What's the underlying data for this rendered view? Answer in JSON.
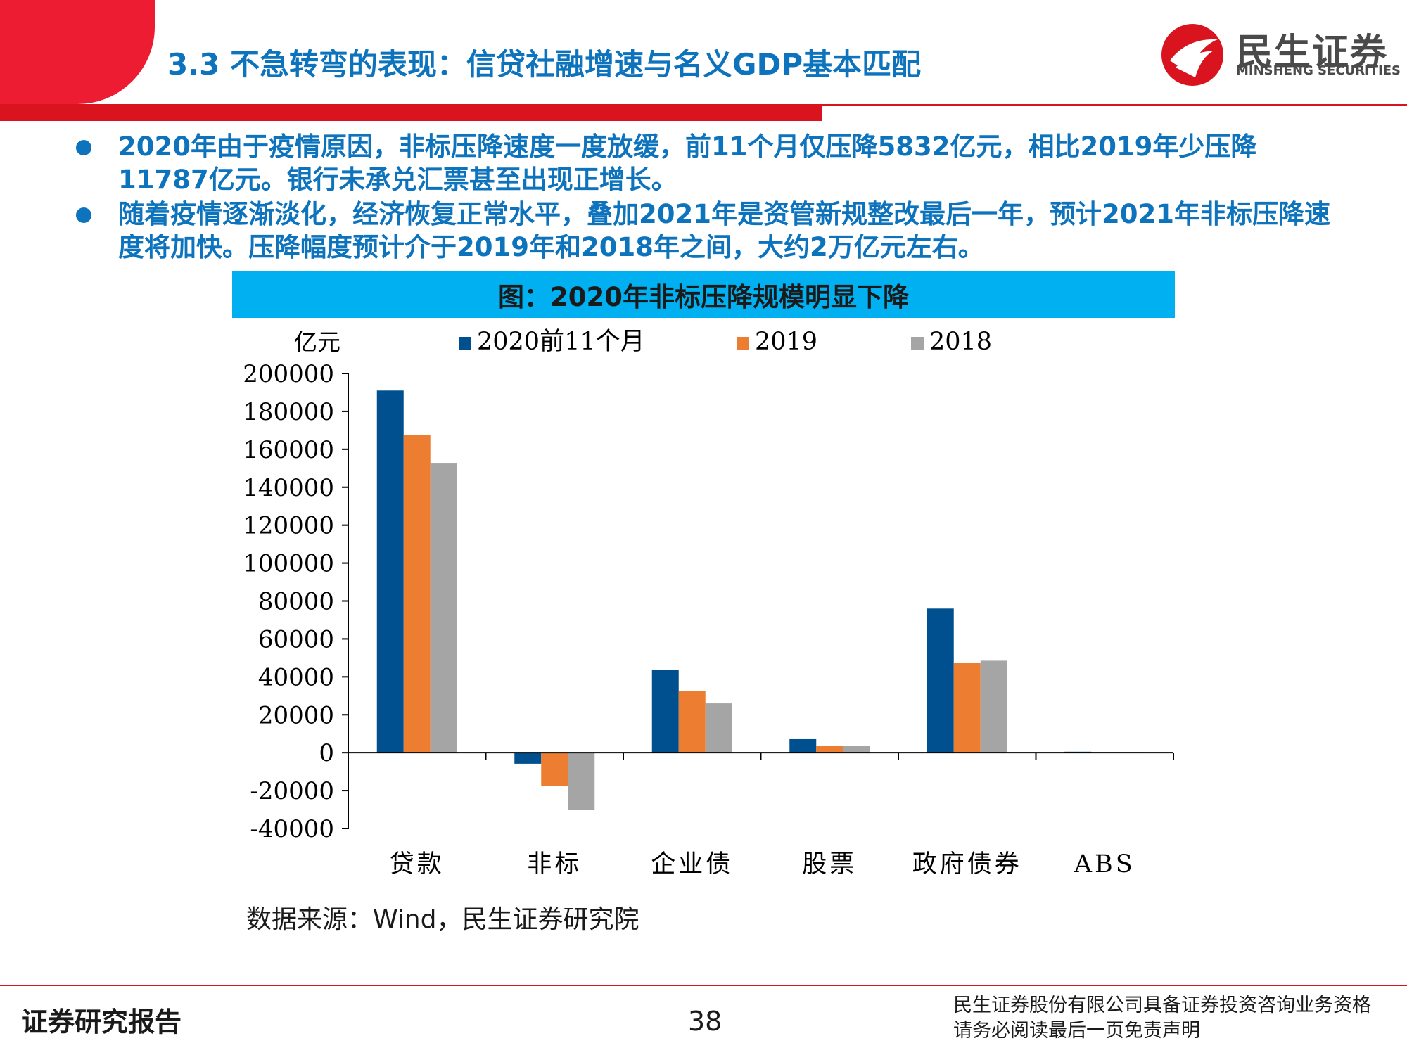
{
  "header": {
    "title": "3.3 不急转弯的表现：信贷社融增速与名义GDP基本匹配",
    "logo_cn": "民生证券",
    "logo_en": "MINSHENG SECURITIES"
  },
  "bullets": [
    "2020年由于疫情原因，非标压降速度一度放缓，前11个月仅压降5832亿元，相比2019年少压降11787亿元。银行未承兑汇票甚至出现正增长。",
    "随着疫情逐渐淡化，经济恢复正常水平，叠加2021年是资管新规整改最后一年，预计2021年非标压降速度将加快。压降幅度预计介于2019年和2018年之间，大约2万亿元左右。"
  ],
  "chart_title": "图：2020年非标压降规模明显下降",
  "chart_data": {
    "type": "bar",
    "ylabel": "亿元",
    "categories": [
      "贷款",
      "非标",
      "企业债",
      "股票",
      "政府债券",
      "ABS"
    ],
    "series": [
      {
        "name": "2020前11个月",
        "color": "#00508f",
        "values": [
          191000,
          -5832,
          43500,
          7500,
          76000,
          500
        ]
      },
      {
        "name": "2019",
        "color": "#ed7d31",
        "values": [
          167500,
          -17619,
          32500,
          3500,
          47500,
          300
        ]
      },
      {
        "name": "2018",
        "color": "#a5a5a5",
        "values": [
          152500,
          -30000,
          26000,
          3500,
          48500,
          300
        ]
      }
    ],
    "ylim": [
      -40000,
      200000
    ],
    "yticks": [
      200000,
      180000,
      160000,
      140000,
      120000,
      100000,
      80000,
      60000,
      40000,
      20000,
      0,
      -20000,
      -40000
    ],
    "legend_position": "top"
  },
  "source": "数据来源：Wind，民生证券研究院",
  "footer": {
    "left": "证券研究报告",
    "page": "38",
    "right_line1": "民生证券股份有限公司具备证券投资咨询业务资格",
    "right_line2": "请务必阅读最后一页免责声明"
  },
  "colors": {
    "brand_red": "#d9141e",
    "accent_blue": "#0d73bd",
    "title_bar": "#00b0f0"
  }
}
